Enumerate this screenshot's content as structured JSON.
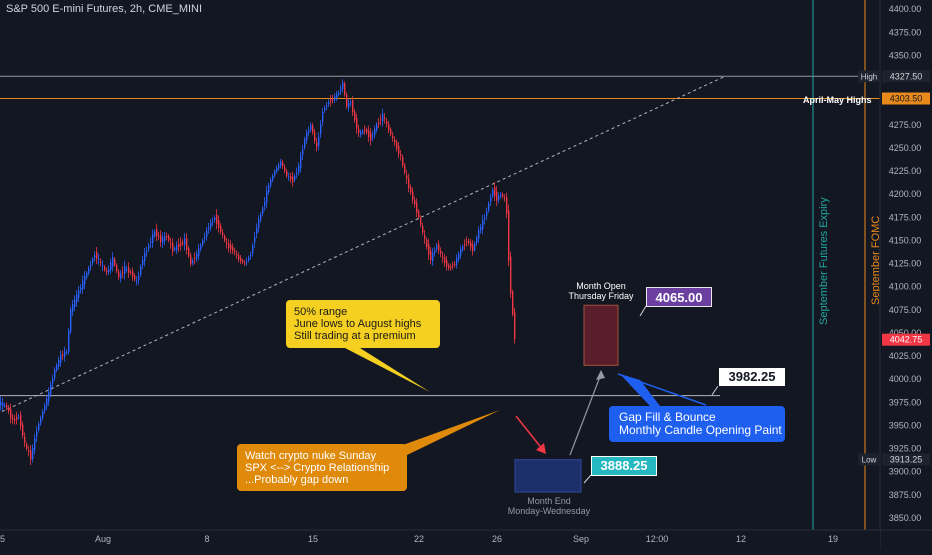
{
  "chart_data": {
    "type": "candlestick",
    "title": "S&P 500 E-mini Futures, 2h, CME_MINI",
    "ylim": [
      3837,
      4410
    ],
    "y_ticks": [
      3850,
      3875,
      3900,
      3925,
      3950,
      3975,
      4000,
      4025,
      4050,
      4075,
      4100,
      4125,
      4150,
      4175,
      4200,
      4225,
      4250,
      4275,
      4300,
      4325,
      4350,
      4375,
      4400
    ],
    "x_ticks": [
      {
        "label": "5",
        "pos": 0
      },
      {
        "label": "Aug",
        "pos": 103
      },
      {
        "label": "8",
        "pos": 207
      },
      {
        "label": "15",
        "pos": 313
      },
      {
        "label": "22",
        "pos": 419
      },
      {
        "label": "26",
        "pos": 497
      },
      {
        "label": "Sep",
        "pos": 581
      },
      {
        "label": "12:00",
        "pos": 657
      },
      {
        "label": "12",
        "pos": 741
      },
      {
        "label": "19",
        "pos": 833
      }
    ],
    "price_path": [
      [
        0,
        3975
      ],
      [
        8,
        3970
      ],
      [
        14,
        3955
      ],
      [
        20,
        3960
      ],
      [
        26,
        3930
      ],
      [
        32,
        3915
      ],
      [
        38,
        3945
      ],
      [
        44,
        3965
      ],
      [
        50,
        3985
      ],
      [
        56,
        4010
      ],
      [
        62,
        4025
      ],
      [
        68,
        4030
      ],
      [
        72,
        4075
      ],
      [
        78,
        4090
      ],
      [
        84,
        4105
      ],
      [
        90,
        4120
      ],
      [
        96,
        4135
      ],
      [
        102,
        4125
      ],
      [
        108,
        4115
      ],
      [
        114,
        4130
      ],
      [
        120,
        4110
      ],
      [
        126,
        4120
      ],
      [
        132,
        4115
      ],
      [
        138,
        4105
      ],
      [
        144,
        4130
      ],
      [
        150,
        4145
      ],
      [
        156,
        4160
      ],
      [
        162,
        4150
      ],
      [
        168,
        4155
      ],
      [
        174,
        4140
      ],
      [
        180,
        4145
      ],
      [
        186,
        4150
      ],
      [
        192,
        4125
      ],
      [
        198,
        4135
      ],
      [
        204,
        4150
      ],
      [
        210,
        4165
      ],
      [
        216,
        4175
      ],
      [
        222,
        4160
      ],
      [
        228,
        4145
      ],
      [
        234,
        4140
      ],
      [
        240,
        4130
      ],
      [
        246,
        4125
      ],
      [
        252,
        4135
      ],
      [
        258,
        4165
      ],
      [
        264,
        4185
      ],
      [
        270,
        4210
      ],
      [
        276,
        4225
      ],
      [
        282,
        4235
      ],
      [
        288,
        4220
      ],
      [
        294,
        4215
      ],
      [
        300,
        4230
      ],
      [
        306,
        4260
      ],
      [
        312,
        4275
      ],
      [
        318,
        4250
      ],
      [
        324,
        4290
      ],
      [
        330,
        4300
      ],
      [
        336,
        4305
      ],
      [
        340,
        4310
      ],
      [
        344,
        4320
      ],
      [
        348,
        4295
      ],
      [
        352,
        4300
      ],
      [
        356,
        4280
      ],
      [
        360,
        4265
      ],
      [
        366,
        4270
      ],
      [
        372,
        4260
      ],
      [
        378,
        4275
      ],
      [
        384,
        4285
      ],
      [
        390,
        4270
      ],
      [
        396,
        4255
      ],
      [
        402,
        4240
      ],
      [
        408,
        4215
      ],
      [
        414,
        4195
      ],
      [
        420,
        4175
      ],
      [
        426,
        4150
      ],
      [
        432,
        4130
      ],
      [
        438,
        4145
      ],
      [
        444,
        4130
      ],
      [
        450,
        4120
      ],
      [
        456,
        4125
      ],
      [
        462,
        4140
      ],
      [
        468,
        4150
      ],
      [
        474,
        4140
      ],
      [
        480,
        4160
      ],
      [
        486,
        4175
      ],
      [
        490,
        4190
      ],
      [
        494,
        4205
      ],
      [
        498,
        4195
      ],
      [
        502,
        4200
      ],
      [
        506,
        4195
      ],
      [
        508,
        4180
      ],
      [
        510,
        4130
      ],
      [
        512,
        4095
      ],
      [
        514,
        4070
      ],
      [
        516,
        4045
      ]
    ],
    "horizontal_levels": [
      {
        "name": "High",
        "value": 4327.5,
        "label": "4327.50"
      },
      {
        "name": "April-May Highs",
        "value": 4303.5,
        "label": "4303.50"
      },
      {
        "name": "Low",
        "value": 3913.25,
        "label": "3913.25"
      },
      {
        "name": "50% range",
        "value": 3982.25,
        "label": "3982.25"
      }
    ],
    "last_price": {
      "value": 4042.75,
      "label": "4042.75"
    },
    "vertical_lines": [
      {
        "label": "September Futures Expiry",
        "pos": 813,
        "color": "#22a7a0"
      },
      {
        "label": "September FOMC",
        "pos": 865,
        "color": "#e8891c"
      }
    ]
  },
  "title": "S&P 500 E-mini Futures, 2h, CME_MINI",
  "annotations": {
    "range_note": [
      "50% range",
      "June lows to August highs",
      "Still trading at a premium"
    ],
    "crypto_note": [
      "Watch crypto nuke Sunday",
      "SPX <--> Crypto Relationship",
      "...Probably gap down"
    ],
    "gap_note": [
      "Gap Fill & Bounce",
      "Monthly Candle Opening Paint"
    ],
    "month_open": [
      "Month Open",
      "Thursday Friday"
    ],
    "month_end": [
      "Month End",
      "Monday-Wednesday"
    ],
    "price_4065": "4065.00",
    "price_3982": "3982.25",
    "price_3888": "3888.25",
    "april_may": "April-May Highs",
    "sept_expiry": "September Futures Expiry",
    "sept_fomc": "September FOMC"
  },
  "colors": {
    "background": "#131722",
    "up": "#2962ff",
    "down": "#f23645",
    "grid_text": "#b2b5be",
    "orange": "#e8891c",
    "teal": "#22a7a0"
  }
}
